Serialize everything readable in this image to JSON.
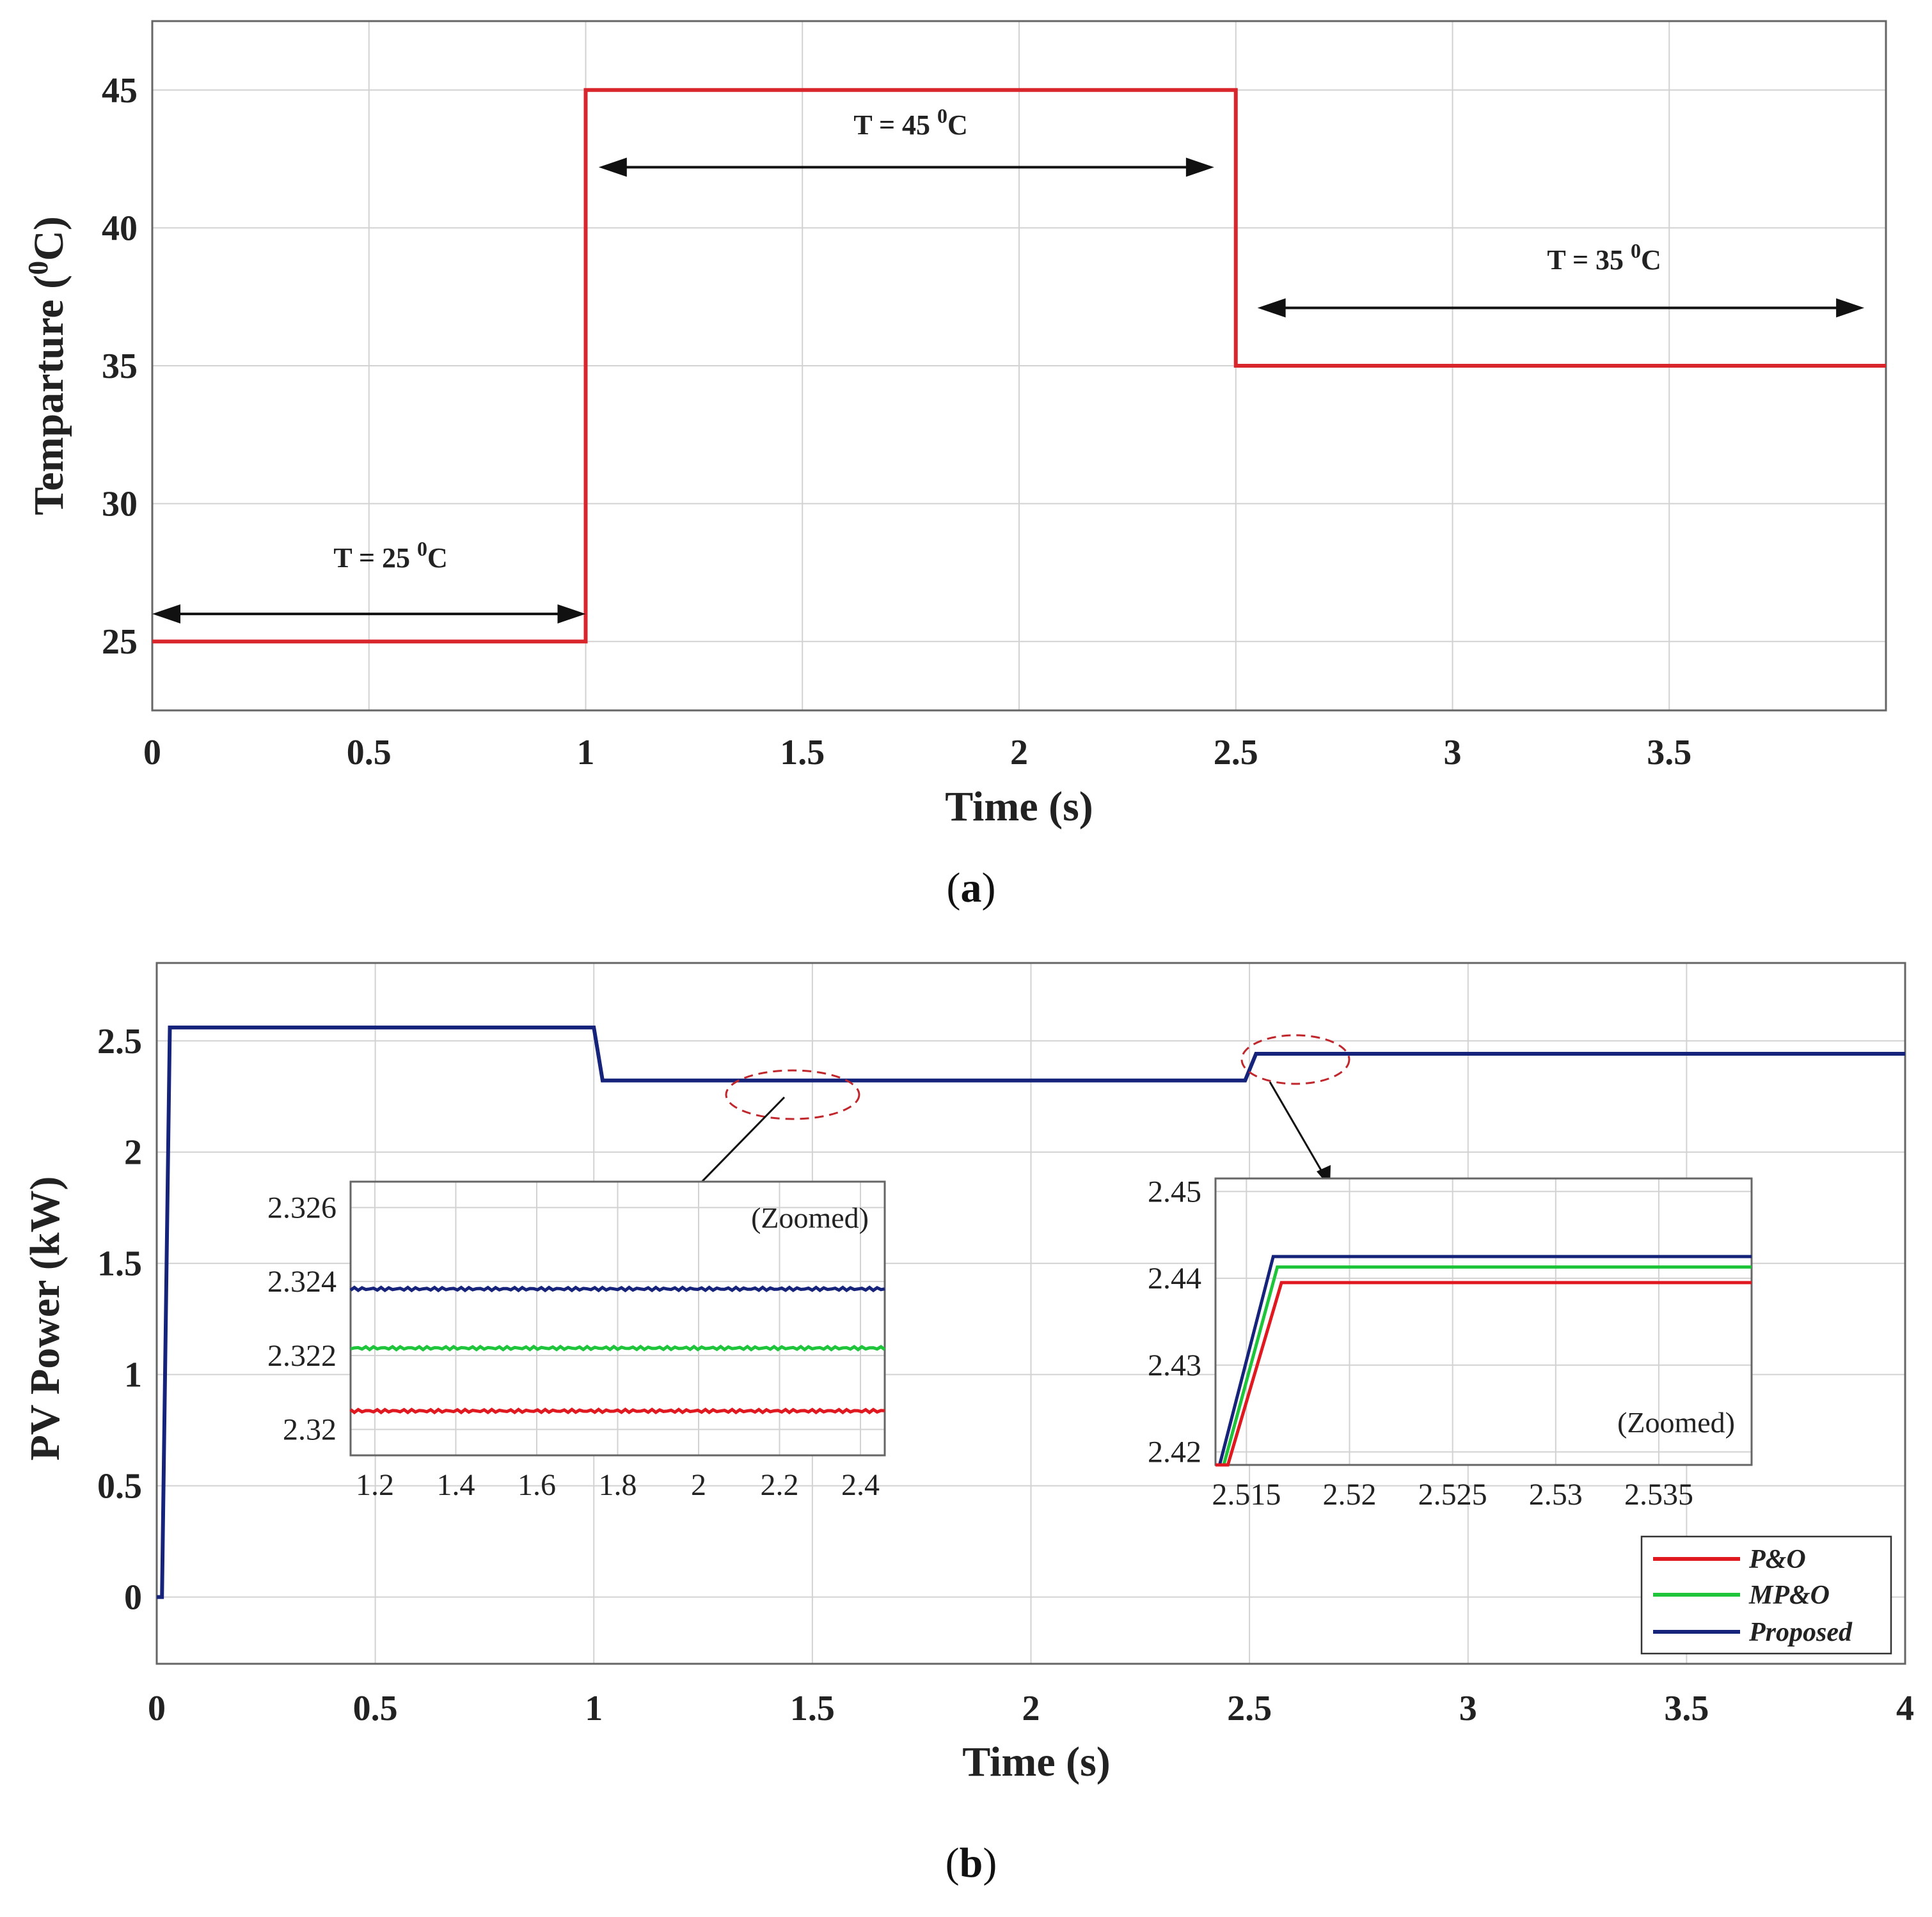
{
  "colors": {
    "po": "#e0181f",
    "mpo": "#1ec53a",
    "proposed": "#15237a",
    "temperature": "#d9262c",
    "arrow": "#111111",
    "ellipse": "#c0272d"
  },
  "chart_data": [
    {
      "id": "a",
      "type": "line",
      "caption": "(a)",
      "caption_letter": "a",
      "xlabel": "Time (s)",
      "ylabel": "Temparture (",
      "ylabel_sup": "0",
      "ylabel_tail": "C)",
      "xlim": [
        0,
        4
      ],
      "ylim": [
        22.5,
        47.5
      ],
      "xticks": [
        0,
        0.5,
        1,
        1.5,
        2,
        2.5,
        3,
        3.5
      ],
      "yticks": [
        25,
        30,
        35,
        40,
        45
      ],
      "grid": true,
      "series": [
        {
          "name": "Temperature",
          "x": [
            0,
            1,
            1,
            2.5,
            2.5,
            4
          ],
          "y": [
            25,
            25,
            45,
            45,
            35,
            35
          ]
        }
      ],
      "annotations": [
        {
          "text": "T = 25 ",
          "sup": "0",
          "tail": "C",
          "x": 0.55,
          "y": 27.7,
          "from": 0,
          "to": 1,
          "at_y": 26.0
        },
        {
          "text": "T = 45 ",
          "sup": "0",
          "tail": "C",
          "x": 1.75,
          "y": 43.4,
          "from": 1.03,
          "to": 2.45,
          "at_y": 42.2
        },
        {
          "text": "T = 35 ",
          "sup": "0",
          "tail": "C",
          "x": 3.35,
          "y": 38.5,
          "from": 2.55,
          "to": 3.95,
          "at_y": 37.1
        }
      ]
    },
    {
      "id": "b",
      "type": "line",
      "caption": "(b)",
      "caption_letter": "b",
      "xlabel": "Time (s)",
      "ylabel": "PV Power (kW)",
      "xlim": [
        0,
        4
      ],
      "ylim": [
        -0.3,
        2.85
      ],
      "xticks": [
        0,
        0.5,
        1,
        1.5,
        2,
        2.5,
        3,
        3.5,
        4
      ],
      "yticks": [
        0,
        0.5,
        1,
        1.5,
        2,
        2.5
      ],
      "grid": true,
      "series": [
        {
          "name": "Proposed",
          "x": [
            0,
            0.012,
            0.03,
            1.0,
            1.02,
            2.49,
            2.515,
            4.0
          ],
          "y": [
            0,
            0,
            2.56,
            2.56,
            2.322,
            2.322,
            2.442,
            2.442
          ]
        }
      ],
      "legend": {
        "placement": "bottom-right",
        "entries": [
          {
            "label": "P&O",
            "color_key": "po"
          },
          {
            "label": "MP&O",
            "color_key": "mpo"
          },
          {
            "label": "Proposed",
            "color_key": "proposed"
          }
        ]
      },
      "insets": [
        {
          "id": "b-inset-1",
          "note": "(Zoomed)",
          "xlim": [
            1.14,
            2.46
          ],
          "ylim": [
            2.3193,
            2.3267
          ],
          "xticks": [
            1.2,
            1.4,
            1.6,
            1.8,
            2,
            2.2,
            2.4
          ],
          "xtick_labels": [
            "1.2",
            "1.4",
            "1.6",
            "1.8",
            "2",
            "2.2",
            "2.4"
          ],
          "yticks": [
            2.32,
            2.322,
            2.324,
            2.326
          ],
          "ytick_labels": [
            "2.32",
            "2.322",
            "2.324",
            "2.326"
          ],
          "series": [
            {
              "name": "Proposed",
              "color_key": "proposed",
              "value": 2.3238
            },
            {
              "name": "MP&O",
              "color_key": "mpo",
              "value": 2.3222
            },
            {
              "name": "P&O",
              "color_key": "po",
              "value": 2.3205
            }
          ]
        },
        {
          "id": "b-inset-2",
          "note": "(Zoomed)",
          "xlim": [
            2.5135,
            2.5395
          ],
          "ylim": [
            2.4185,
            2.4515
          ],
          "xticks": [
            2.515,
            2.52,
            2.525,
            2.53,
            2.535
          ],
          "xtick_labels": [
            "2.515",
            "2.52",
            "2.525",
            "2.53",
            "2.535"
          ],
          "yticks": [
            2.42,
            2.43,
            2.44,
            2.45
          ],
          "ytick_labels": [
            "2.42",
            "2.43",
            "2.44",
            "2.45"
          ],
          "series": [
            {
              "name": "Proposed",
              "color_key": "proposed",
              "x": [
                2.5135,
                2.5137,
                2.5163,
                2.5395
              ],
              "y": [
                2.4185,
                2.4185,
                2.4425,
                2.4425
              ]
            },
            {
              "name": "MP&O",
              "color_key": "mpo",
              "x": [
                2.5135,
                2.5139,
                2.5165,
                2.5395
              ],
              "y": [
                2.4185,
                2.4185,
                2.4413,
                2.4413
              ]
            },
            {
              "name": "P&O",
              "color_key": "po",
              "x": [
                2.5135,
                2.5141,
                2.5167,
                2.5395
              ],
              "y": [
                2.4185,
                2.4185,
                2.4395,
                2.4395
              ]
            }
          ]
        }
      ]
    }
  ]
}
